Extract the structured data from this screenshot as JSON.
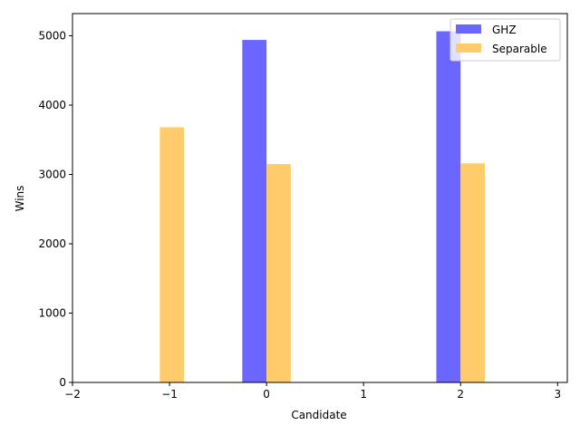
{
  "chart_data": {
    "type": "bar",
    "xlabel": "Candidate",
    "ylabel": "Wins",
    "xlim": [
      -2,
      3.1
    ],
    "ylim": [
      0,
      5320
    ],
    "xticks": [
      -2,
      -1,
      0,
      1,
      2,
      3
    ],
    "yticks": [
      0,
      1000,
      2000,
      3000,
      4000,
      5000
    ],
    "grid": false,
    "legend_position": "top-right",
    "bar_width": 0.25,
    "series": [
      {
        "name": "GHZ",
        "color": "#6a66ff",
        "points": [
          {
            "x": -0.125,
            "value": 4940
          },
          {
            "x": 1.875,
            "value": 5065
          }
        ]
      },
      {
        "name": "Separable",
        "color": "#ffcb6b",
        "points": [
          {
            "x": -0.975,
            "value": 3680
          },
          {
            "x": 0.125,
            "value": 3150
          },
          {
            "x": 2.125,
            "value": 3160
          }
        ]
      }
    ]
  }
}
